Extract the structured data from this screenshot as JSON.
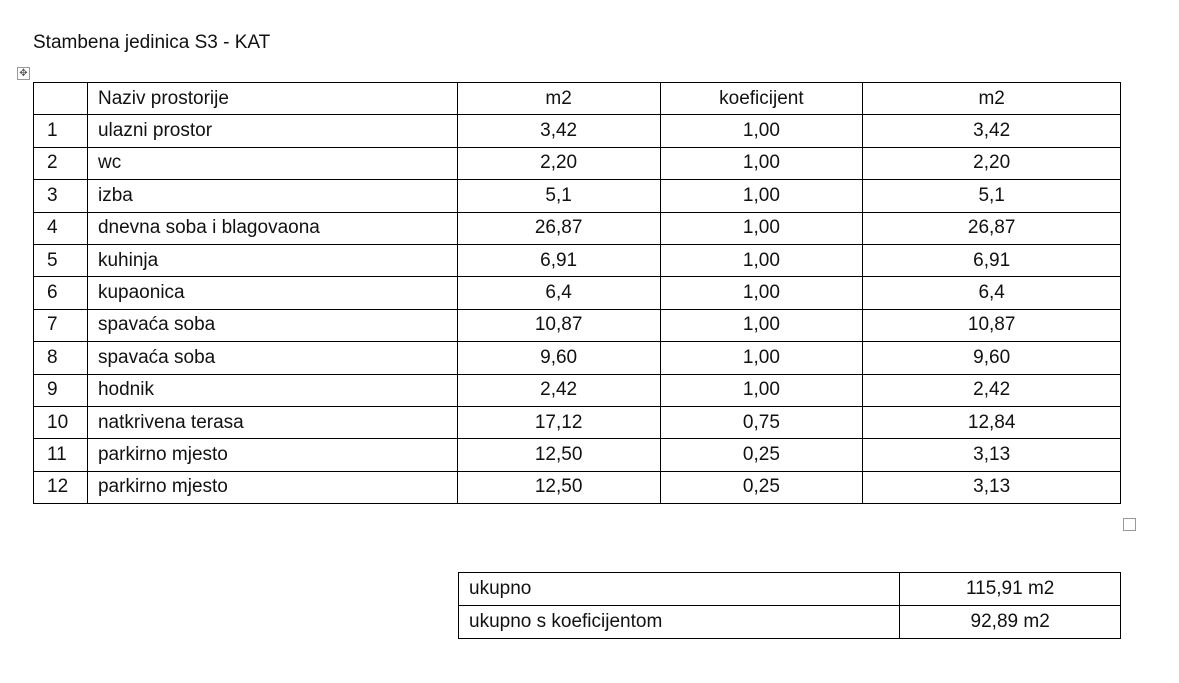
{
  "title": "Stambena jedinica S3 - KAT",
  "table": {
    "headers": [
      "",
      "Naziv prostorije",
      "m2",
      "koeficijent",
      "m2"
    ],
    "rows": [
      [
        "1",
        "ulazni prostor",
        "3,42",
        "1,00",
        "3,42"
      ],
      [
        "2",
        "wc",
        "2,20",
        "1,00",
        "2,20"
      ],
      [
        "3",
        "izba",
        "5,1",
        "1,00",
        "5,1"
      ],
      [
        "4",
        "dnevna soba i blagovaona",
        "26,87",
        "1,00",
        "26,87"
      ],
      [
        "5",
        "kuhinja",
        "6,91",
        "1,00",
        "6,91"
      ],
      [
        "6",
        "kupaonica",
        "6,4",
        "1,00",
        "6,4"
      ],
      [
        "7",
        "spavaća soba",
        "10,87",
        "1,00",
        "10,87"
      ],
      [
        "8",
        "spavaća soba",
        "9,60",
        "1,00",
        "9,60"
      ],
      [
        "9",
        "hodnik",
        "2,42",
        "1,00",
        "2,42"
      ],
      [
        "10",
        "natkrivena terasa",
        "17,12",
        "0,75",
        "12,84"
      ],
      [
        "11",
        "parkirno mjesto",
        "12,50",
        "0,25",
        "3,13"
      ],
      [
        "12",
        "parkirno mjesto",
        "12,50",
        "0,25",
        "3,13"
      ]
    ]
  },
  "totals": [
    {
      "label": "ukupno",
      "value": "115,91 m2"
    },
    {
      "label": "ukupno s koeficijentom",
      "value": "92,89 m2"
    }
  ]
}
